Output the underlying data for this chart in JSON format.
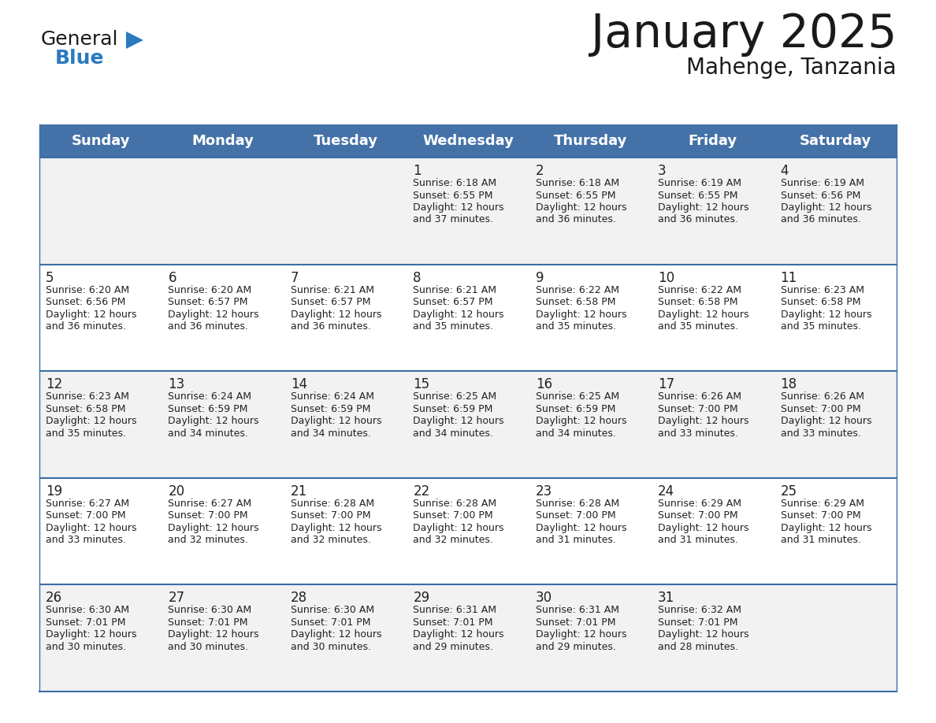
{
  "title": "January 2025",
  "subtitle": "Mahenge, Tanzania",
  "header_color": "#4472a8",
  "header_text_color": "#ffffff",
  "day_names": [
    "Sunday",
    "Monday",
    "Tuesday",
    "Wednesday",
    "Thursday",
    "Friday",
    "Saturday"
  ],
  "row_bg_even": "#f2f2f2",
  "row_bg_odd": "#ffffff",
  "separator_color": "#3a6ea5",
  "text_color": "#222222",
  "logo_general_color": "#1a1a1a",
  "logo_blue_color": "#2a7abf",
  "logo_triangle_color": "#2a7abf",
  "title_color": "#1a1a1a",
  "subtitle_color": "#1a1a1a",
  "calendar_data": [
    [
      {
        "day": "",
        "sunrise": "",
        "sunset": "",
        "daylight": ""
      },
      {
        "day": "",
        "sunrise": "",
        "sunset": "",
        "daylight": ""
      },
      {
        "day": "",
        "sunrise": "",
        "sunset": "",
        "daylight": ""
      },
      {
        "day": "1",
        "sunrise": "6:18 AM",
        "sunset": "6:55 PM",
        "daylight": "12 hours and 37 minutes."
      },
      {
        "day": "2",
        "sunrise": "6:18 AM",
        "sunset": "6:55 PM",
        "daylight": "12 hours and 36 minutes."
      },
      {
        "day": "3",
        "sunrise": "6:19 AM",
        "sunset": "6:55 PM",
        "daylight": "12 hours and 36 minutes."
      },
      {
        "day": "4",
        "sunrise": "6:19 AM",
        "sunset": "6:56 PM",
        "daylight": "12 hours and 36 minutes."
      }
    ],
    [
      {
        "day": "5",
        "sunrise": "6:20 AM",
        "sunset": "6:56 PM",
        "daylight": "12 hours and 36 minutes."
      },
      {
        "day": "6",
        "sunrise": "6:20 AM",
        "sunset": "6:57 PM",
        "daylight": "12 hours and 36 minutes."
      },
      {
        "day": "7",
        "sunrise": "6:21 AM",
        "sunset": "6:57 PM",
        "daylight": "12 hours and 36 minutes."
      },
      {
        "day": "8",
        "sunrise": "6:21 AM",
        "sunset": "6:57 PM",
        "daylight": "12 hours and 35 minutes."
      },
      {
        "day": "9",
        "sunrise": "6:22 AM",
        "sunset": "6:58 PM",
        "daylight": "12 hours and 35 minutes."
      },
      {
        "day": "10",
        "sunrise": "6:22 AM",
        "sunset": "6:58 PM",
        "daylight": "12 hours and 35 minutes."
      },
      {
        "day": "11",
        "sunrise": "6:23 AM",
        "sunset": "6:58 PM",
        "daylight": "12 hours and 35 minutes."
      }
    ],
    [
      {
        "day": "12",
        "sunrise": "6:23 AM",
        "sunset": "6:58 PM",
        "daylight": "12 hours and 35 minutes."
      },
      {
        "day": "13",
        "sunrise": "6:24 AM",
        "sunset": "6:59 PM",
        "daylight": "12 hours and 34 minutes."
      },
      {
        "day": "14",
        "sunrise": "6:24 AM",
        "sunset": "6:59 PM",
        "daylight": "12 hours and 34 minutes."
      },
      {
        "day": "15",
        "sunrise": "6:25 AM",
        "sunset": "6:59 PM",
        "daylight": "12 hours and 34 minutes."
      },
      {
        "day": "16",
        "sunrise": "6:25 AM",
        "sunset": "6:59 PM",
        "daylight": "12 hours and 34 minutes."
      },
      {
        "day": "17",
        "sunrise": "6:26 AM",
        "sunset": "7:00 PM",
        "daylight": "12 hours and 33 minutes."
      },
      {
        "day": "18",
        "sunrise": "6:26 AM",
        "sunset": "7:00 PM",
        "daylight": "12 hours and 33 minutes."
      }
    ],
    [
      {
        "day": "19",
        "sunrise": "6:27 AM",
        "sunset": "7:00 PM",
        "daylight": "12 hours and 33 minutes."
      },
      {
        "day": "20",
        "sunrise": "6:27 AM",
        "sunset": "7:00 PM",
        "daylight": "12 hours and 32 minutes."
      },
      {
        "day": "21",
        "sunrise": "6:28 AM",
        "sunset": "7:00 PM",
        "daylight": "12 hours and 32 minutes."
      },
      {
        "day": "22",
        "sunrise": "6:28 AM",
        "sunset": "7:00 PM",
        "daylight": "12 hours and 32 minutes."
      },
      {
        "day": "23",
        "sunrise": "6:28 AM",
        "sunset": "7:00 PM",
        "daylight": "12 hours and 31 minutes."
      },
      {
        "day": "24",
        "sunrise": "6:29 AM",
        "sunset": "7:00 PM",
        "daylight": "12 hours and 31 minutes."
      },
      {
        "day": "25",
        "sunrise": "6:29 AM",
        "sunset": "7:00 PM",
        "daylight": "12 hours and 31 minutes."
      }
    ],
    [
      {
        "day": "26",
        "sunrise": "6:30 AM",
        "sunset": "7:01 PM",
        "daylight": "12 hours and 30 minutes."
      },
      {
        "day": "27",
        "sunrise": "6:30 AM",
        "sunset": "7:01 PM",
        "daylight": "12 hours and 30 minutes."
      },
      {
        "day": "28",
        "sunrise": "6:30 AM",
        "sunset": "7:01 PM",
        "daylight": "12 hours and 30 minutes."
      },
      {
        "day": "29",
        "sunrise": "6:31 AM",
        "sunset": "7:01 PM",
        "daylight": "12 hours and 29 minutes."
      },
      {
        "day": "30",
        "sunrise": "6:31 AM",
        "sunset": "7:01 PM",
        "daylight": "12 hours and 29 minutes."
      },
      {
        "day": "31",
        "sunrise": "6:32 AM",
        "sunset": "7:01 PM",
        "daylight": "12 hours and 28 minutes."
      },
      {
        "day": "",
        "sunrise": "",
        "sunset": "",
        "daylight": ""
      }
    ]
  ]
}
